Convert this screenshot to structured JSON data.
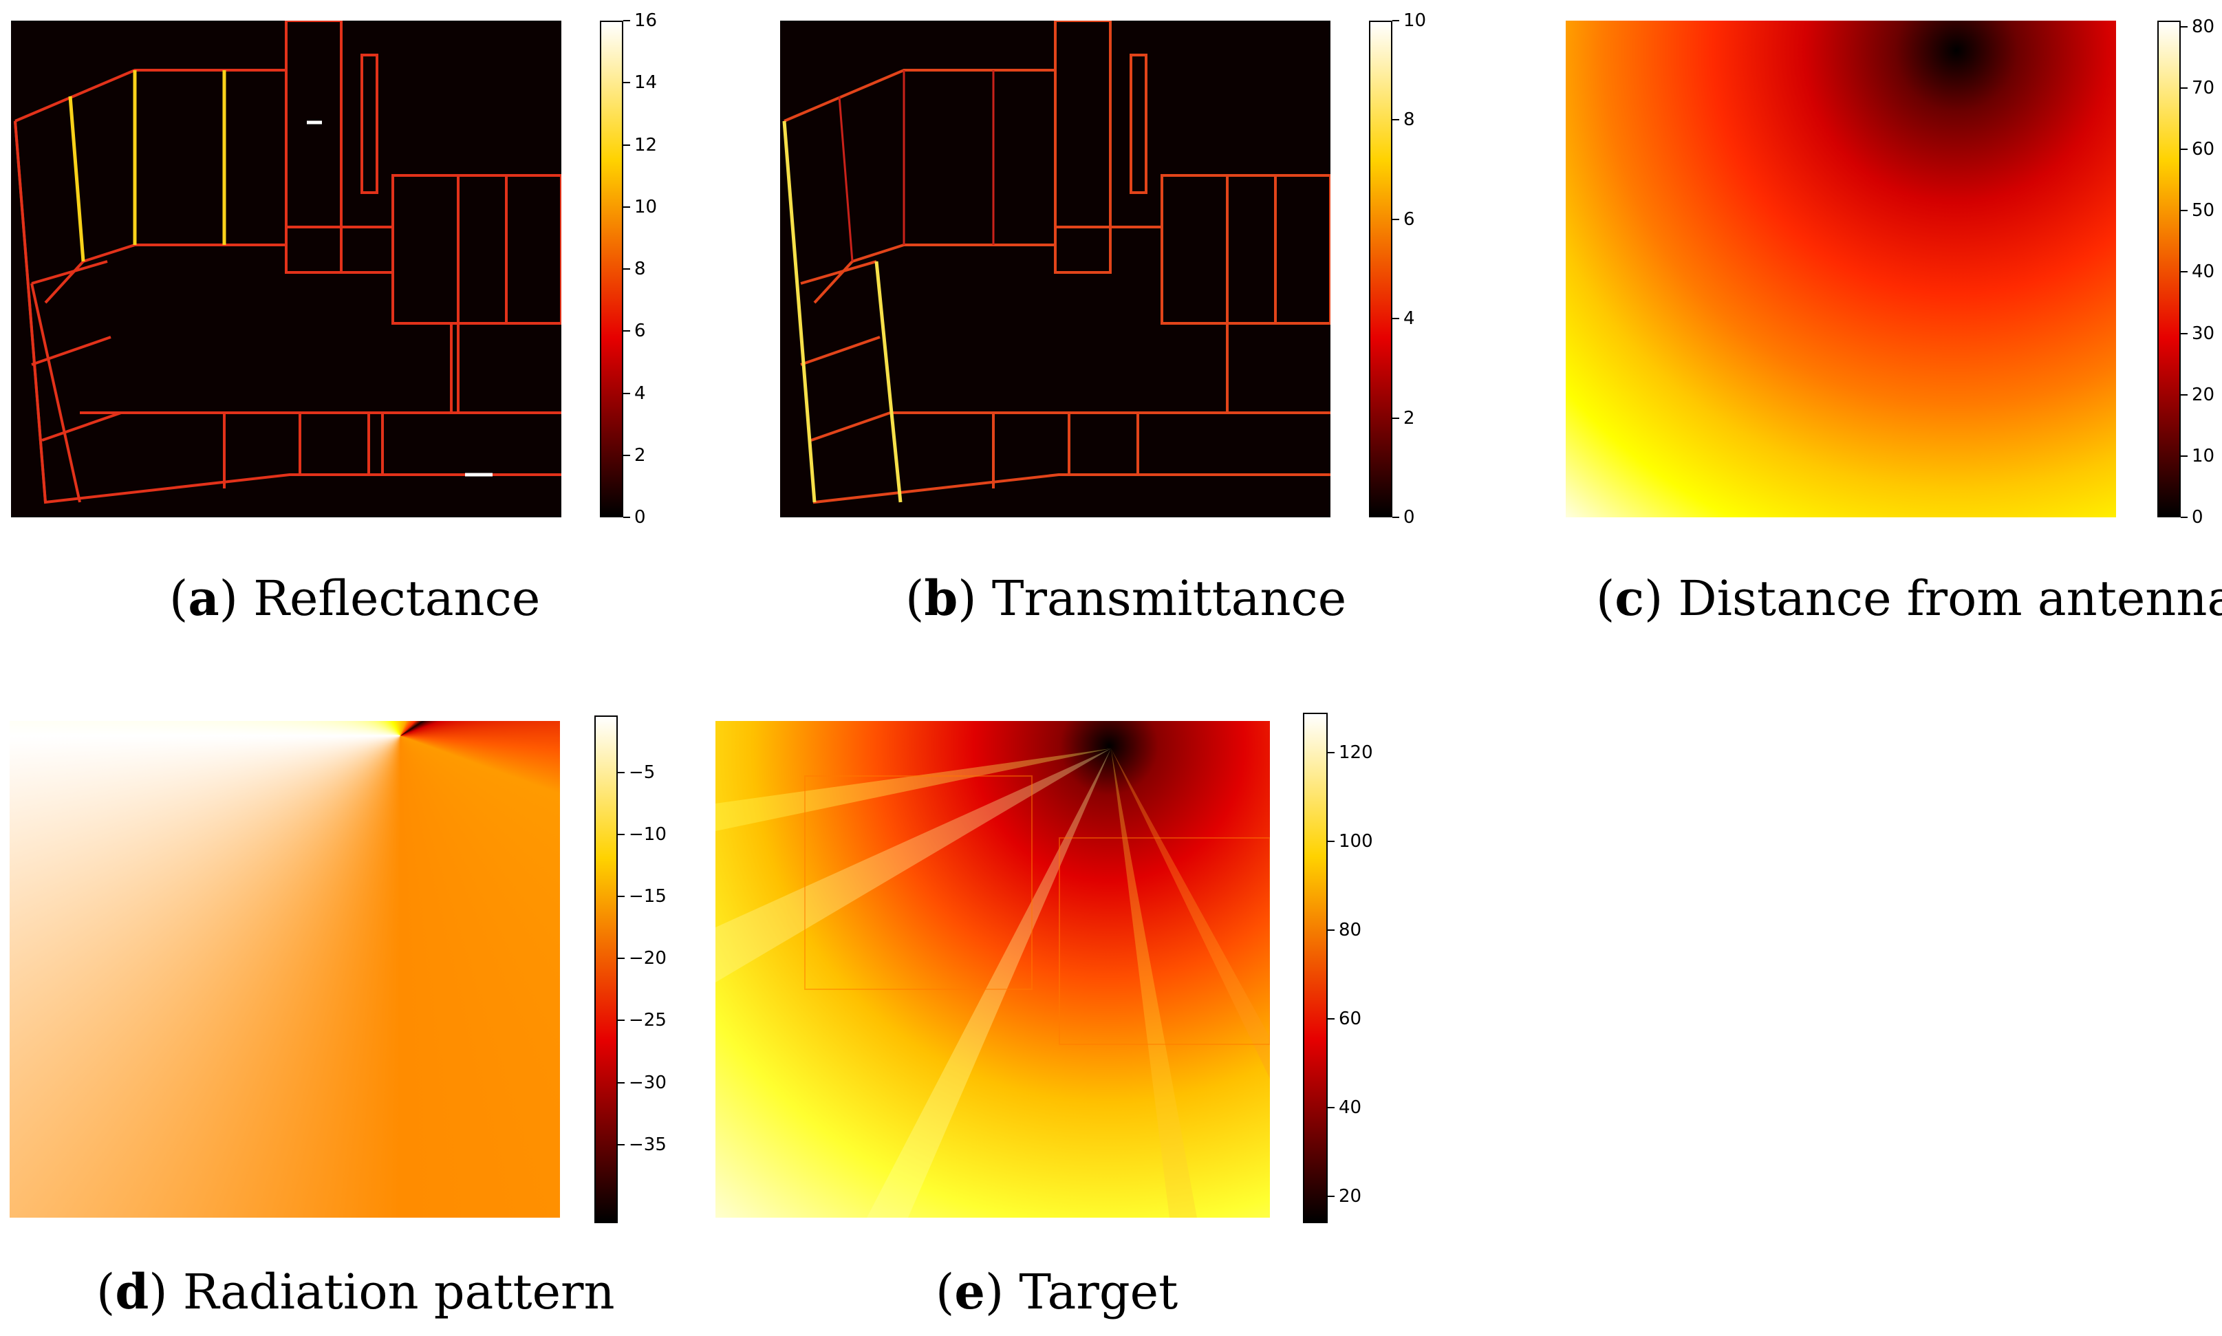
{
  "panels": [
    {
      "id": "a",
      "letter": "a",
      "title": "Reflectance",
      "cbar_ticks": [
        "16",
        "14",
        "12",
        "10",
        "8",
        "6",
        "4",
        "2",
        "0"
      ]
    },
    {
      "id": "b",
      "letter": "b",
      "title": "Transmittance",
      "cbar_ticks": [
        "10",
        "8",
        "6",
        "4",
        "2",
        "0"
      ]
    },
    {
      "id": "c",
      "letter": "c",
      "title": "Distance from antenna",
      "cbar_ticks": [
        "80",
        "70",
        "60",
        "50",
        "40",
        "30",
        "20",
        "10",
        "0"
      ]
    },
    {
      "id": "d",
      "letter": "d",
      "title": "Radiation pattern",
      "cbar_ticks": [
        "−5",
        "−10",
        "−15",
        "−20",
        "−25",
        "−30",
        "−35"
      ]
    },
    {
      "id": "e",
      "letter": "e",
      "title": "Target",
      "cbar_ticks": [
        "120",
        "100",
        "80",
        "60",
        "40",
        "20"
      ]
    }
  ],
  "colormap": "hot"
}
